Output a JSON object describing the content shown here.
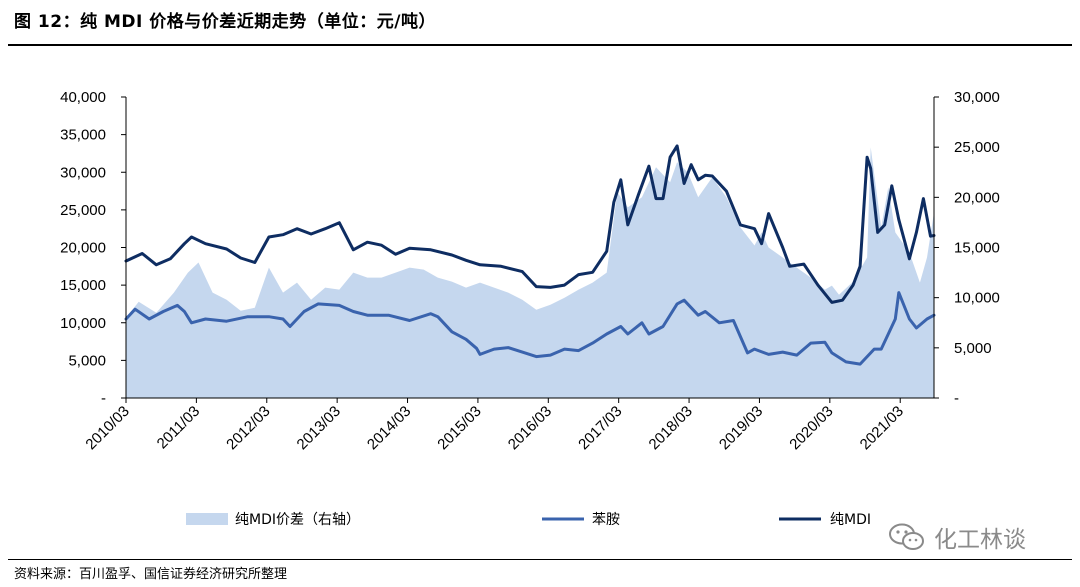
{
  "header": {
    "title": "图 12：纯 MDI 价格与价差近期走势（单位：元/吨）"
  },
  "footer": {
    "source": "资料来源：百川盈孚、国信证券经济研究所整理"
  },
  "watermark": {
    "text": "化工林谈"
  },
  "chart_data": {
    "type": "line",
    "x_tick_labels": [
      "2010/03",
      "2011/03",
      "2012/03",
      "2013/03",
      "2014/03",
      "2015/03",
      "2016/03",
      "2017/03",
      "2018/03",
      "2019/03",
      "2020/03",
      "2021/03"
    ],
    "x_range": [
      2010.17,
      2021.65
    ],
    "y_left": {
      "range": [
        0,
        40000
      ],
      "tick_labels": [
        "-",
        "5,000",
        "10,000",
        "15,000",
        "20,000",
        "25,000",
        "30,000",
        "35,000",
        "40,000"
      ]
    },
    "y_right": {
      "range": [
        0,
        30000
      ],
      "tick_labels": [
        "-",
        "5,000",
        "10,000",
        "15,000",
        "20,000",
        "25,000",
        "30,000"
      ]
    },
    "legend": {
      "position": "bottom"
    },
    "series": [
      {
        "name": "纯MDI价差（右轴）",
        "type": "area",
        "axis": "right",
        "color": "#c5d7ee",
        "x": [
          2010.17,
          2010.35,
          2010.6,
          2010.85,
          2011.05,
          2011.2,
          2011.4,
          2011.6,
          2011.8,
          2012.0,
          2012.2,
          2012.4,
          2012.6,
          2012.8,
          2013.0,
          2013.2,
          2013.4,
          2013.6,
          2013.8,
          2014.0,
          2014.2,
          2014.4,
          2014.6,
          2014.8,
          2015.0,
          2015.2,
          2015.4,
          2015.6,
          2015.8,
          2016.0,
          2016.2,
          2016.4,
          2016.6,
          2016.8,
          2017.0,
          2017.15,
          2017.3,
          2017.5,
          2017.7,
          2017.9,
          2018.0,
          2018.15,
          2018.3,
          2018.5,
          2018.7,
          2018.9,
          2019.1,
          2019.2,
          2019.3,
          2019.5,
          2019.7,
          2019.9,
          2020.1,
          2020.2,
          2020.3,
          2020.5,
          2020.7,
          2020.75,
          2020.9,
          2021.0,
          2021.1,
          2021.3,
          2021.45,
          2021.55,
          2021.65
        ],
        "values": [
          8000,
          9600,
          8500,
          10500,
          12500,
          13500,
          10500,
          9800,
          8700,
          9000,
          13000,
          10500,
          11500,
          9800,
          11000,
          10800,
          12500,
          12000,
          12000,
          12500,
          13000,
          12800,
          12000,
          11600,
          11000,
          11500,
          11000,
          10500,
          9800,
          8800,
          9300,
          10000,
          10800,
          11500,
          12500,
          20500,
          19000,
          20000,
          23000,
          21500,
          23500,
          22500,
          20000,
          22000,
          20000,
          17000,
          15200,
          16500,
          15000,
          14000,
          13000,
          12000,
          10800,
          11200,
          10300,
          11600,
          14000,
          25000,
          17000,
          21000,
          16500,
          14500,
          11500,
          14000,
          18500
        ]
      },
      {
        "name": "苯胺",
        "type": "line",
        "axis": "left",
        "color": "#3a63ad",
        "x": [
          2010.17,
          2010.3,
          2010.5,
          2010.7,
          2010.9,
          2011.0,
          2011.1,
          2011.3,
          2011.6,
          2011.9,
          2012.2,
          2012.4,
          2012.5,
          2012.7,
          2012.9,
          2013.2,
          2013.4,
          2013.6,
          2013.9,
          2014.2,
          2014.5,
          2014.6,
          2014.8,
          2015.0,
          2015.15,
          2015.2,
          2015.4,
          2015.6,
          2015.8,
          2016.0,
          2016.2,
          2016.4,
          2016.6,
          2016.8,
          2017.0,
          2017.2,
          2017.3,
          2017.5,
          2017.6,
          2017.8,
          2018.0,
          2018.1,
          2018.3,
          2018.4,
          2018.6,
          2018.8,
          2019.0,
          2019.1,
          2019.3,
          2019.5,
          2019.7,
          2019.9,
          2020.1,
          2020.2,
          2020.4,
          2020.6,
          2020.8,
          2020.9,
          2021.0,
          2021.1,
          2021.15,
          2021.3,
          2021.4,
          2021.55,
          2021.65
        ],
        "values": [
          10500,
          11800,
          10500,
          11500,
          12300,
          11500,
          10000,
          10500,
          10200,
          10800,
          10800,
          10500,
          9500,
          11500,
          12500,
          12300,
          11500,
          11000,
          11000,
          10300,
          11200,
          10800,
          8800,
          7800,
          6600,
          5800,
          6500,
          6700,
          6100,
          5500,
          5700,
          6500,
          6300,
          7300,
          8500,
          9500,
          8500,
          10000,
          8500,
          9500,
          12500,
          13000,
          11000,
          11500,
          10000,
          10300,
          6000,
          6500,
          5800,
          6100,
          5700,
          7300,
          7400,
          6000,
          4800,
          4500,
          6500,
          6500,
          8500,
          10500,
          14000,
          10500,
          9300,
          10500,
          11000
        ]
      },
      {
        "name": "纯MDI",
        "type": "line",
        "axis": "left",
        "color": "#0e2d62",
        "x": [
          2010.17,
          2010.4,
          2010.6,
          2010.8,
          2011.0,
          2011.1,
          2011.3,
          2011.6,
          2011.8,
          2012.0,
          2012.2,
          2012.4,
          2012.6,
          2012.8,
          2013.0,
          2013.2,
          2013.4,
          2013.6,
          2013.8,
          2014.0,
          2014.2,
          2014.5,
          2014.8,
          2015.0,
          2015.2,
          2015.5,
          2015.8,
          2016.0,
          2016.2,
          2016.4,
          2016.6,
          2016.8,
          2017.0,
          2017.1,
          2017.2,
          2017.3,
          2017.45,
          2017.6,
          2017.7,
          2017.8,
          2017.9,
          2018.0,
          2018.1,
          2018.2,
          2018.3,
          2018.4,
          2018.5,
          2018.7,
          2018.9,
          2019.1,
          2019.2,
          2019.3,
          2019.5,
          2019.6,
          2019.8,
          2020.0,
          2020.2,
          2020.35,
          2020.5,
          2020.6,
          2020.7,
          2020.75,
          2020.85,
          2020.95,
          2021.05,
          2021.15,
          2021.3,
          2021.4,
          2021.5,
          2021.6,
          2021.65
        ],
        "values": [
          18200,
          19200,
          17700,
          18500,
          20500,
          21400,
          20500,
          19800,
          18600,
          18000,
          21400,
          21700,
          22500,
          21800,
          22500,
          23300,
          19700,
          20700,
          20300,
          19100,
          19900,
          19700,
          19000,
          18300,
          17700,
          17500,
          16800,
          14800,
          14700,
          15000,
          16400,
          16700,
          19500,
          26000,
          29000,
          23000,
          27000,
          30800,
          26500,
          26500,
          32000,
          33500,
          28500,
          31000,
          29000,
          29600,
          29500,
          27500,
          23000,
          22500,
          20500,
          24500,
          20000,
          17500,
          17800,
          15000,
          12700,
          13000,
          15000,
          17500,
          32000,
          30500,
          22000,
          23000,
          28200,
          23700,
          18500,
          22000,
          26500,
          21500,
          21600
        ]
      }
    ]
  }
}
